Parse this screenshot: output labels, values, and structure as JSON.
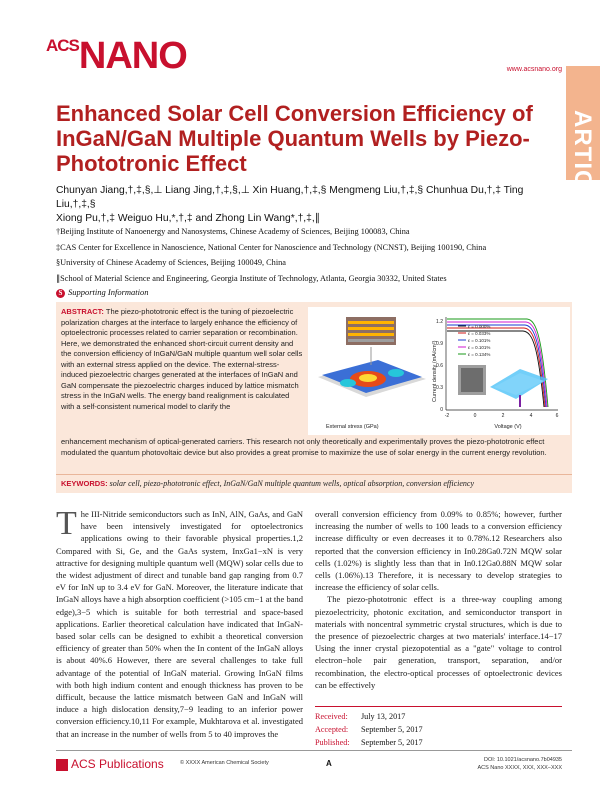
{
  "journal": {
    "logo_small": "ACS",
    "logo_big": "NANO",
    "url": "www.acsnano.org",
    "section": "ARTICLE"
  },
  "title": "Enhanced Solar Cell Conversion Efficiency of InGaN/GaN Multiple Quantum Wells by Piezo-Phototronic Effect",
  "authors": {
    "line1": "Chunyan Jiang,†,‡,§,⊥ Liang Jing,†,‡,§,⊥ Xin Huang,†,‡,§ Mengmeng Liu,†,‡,§ Chunhua Du,†,‡ Ting Liu,†,‡,§",
    "line2": "Xiong Pu,†,‡ Weiguo Hu,*,†,‡ and Zhong Lin Wang*,†,‡,∥"
  },
  "affiliations": [
    "†Beijing Institute of Nanoenergy and Nanosystems, Chinese Academy of Sciences, Beijing 100083, China",
    "‡CAS Center for Excellence in Nanoscience, National Center for Nanoscience and Technology (NCNST), Beijing 100190, China",
    "§University of Chinese Academy of Sciences, Beijing 100049, China",
    "∥School of Material Science and Engineering, Georgia Institute of Technology, Atlanta, Georgia 30332, United States"
  ],
  "supporting": "Supporting Information",
  "abstract": {
    "label": "ABSTRACT:",
    "part1": "The piezo-phototronic effect is the tuning of piezoelectric polarization charges at the interface to largely enhance the efficiency of optoelectronic processes related to carrier separation or recombination. Here, we demonstrated the enhanced short-circuit current density and the conversion efficiency of InGaN/GaN multiple quantum well solar cells with an external stress applied on the device. The external-stress-induced piezoelectric charges generated at the interfaces of InGaN and GaN compensate the piezoelectric charges induced by lattice mismatch stress in the InGaN wells. The energy band realignment is calculated with a self-consistent numerical model to clarify the",
    "part2": "enhancement mechanism of optical-generated carriers. This research not only theoretically and experimentally proves the piezo-phototronic effect modulated the quantum photovoltaic device but also provides a great promise to maximize the use of solar energy in the current energy revolution."
  },
  "keywords": {
    "label": "KEYWORDS:",
    "text": "solar cell, piezo-phototronic effect, InGaN/GaN multiple quantum wells, optical absorption, conversion efficiency"
  },
  "figure": {
    "xlabel_left": "External stress (GPa)",
    "ylabel": "Current density (mA/cm²)",
    "xlabel": "Voltage (V)",
    "legend": [
      "ε = 0.000%",
      "ε = 0.033%",
      "ε = 0.101%",
      "ε = 0.101%",
      "ε = 0.134%"
    ],
    "legend_colors": [
      "#111111",
      "#d11a1a",
      "#1a3ad1",
      "#d11ad1",
      "#1a9a1a"
    ],
    "yticks": [
      "1.2",
      "0.9",
      "0.6",
      "0.3",
      "0"
    ],
    "xticks": [
      "-2",
      "0",
      "2",
      "4",
      "6"
    ]
  },
  "body": {
    "col1_p1": "he III-Nitride semiconductors such as InN, AlN, GaAs, and GaN have been intensively investigated for optoelectronics applications owing to their favorable physical properties.1,2 Compared with Si, Ge, and the GaAs system, InxGa1−xN is very attractive for designing multiple quantum well (MQW) solar cells due to the widest adjustment of direct and tunable band gap ranging from 0.7 eV for InN up to 3.4 eV for GaN. Moreover, the literature indicate that InGaN alloys have a high absorption coefficient (>105 cm−1 at the band edge),3−5 which is suitable for both terrestrial and space-based applications. Earlier theoretical calculation have indicated that InGaN-based solar cells can be designed to exhibit a theoretical conversion efficiency of greater than 50% when the In content of the InGaN alloys is about 40%.6 However, there are several challenges to take full advantage of the potential of InGaN material. Growing InGaN films with both high indium content and enough thickness has proven to be difficult, because the lattice mismatch between GaN and InGaN will induce a high dislocation density,7−9 leading to an inferior power conversion efficiency.10,11 For example, Mukhtarova et al. investigated that an increase in the number of wells from 5 to 40 improves the",
    "dropcap": "T",
    "col2_p1": "overall conversion efficiency from 0.09% to 0.85%; however, further increasing the number of wells to 100 leads to a conversion efficiency increase difficulty or even decreases it to 0.78%.12 Researchers also reported that the conversion efficiency in In0.28Ga0.72N MQW solar cells (1.02%) is slightly less than that in In0.12Ga0.88N MQW solar cells (1.06%).13 Therefore, it is necessary to develop strategies to increase the efficiency of solar cells.",
    "col2_p2": "The piezo-phototronic effect is a three-way coupling among piezoelectricity, photonic excitation, and semiconductor transport in materials with noncentral symmetric crystal structures, which is due to the presence of piezoelectric charges at two materials' interface.14−17 Using the inner crystal piezopotential as a \"gate\" voltage to control electron−hole pair generation, transport, separation, and/or recombination, the electro-optical processes of optoelectronic devices can be effectively"
  },
  "received": [
    {
      "k": "Received:",
      "v": "July 13, 2017"
    },
    {
      "k": "Accepted:",
      "v": "September 5, 2017"
    },
    {
      "k": "Published:",
      "v": "September 5, 2017"
    }
  ],
  "footer": {
    "pubs": "ACS Publications",
    "copyright": "© XXXX American Chemical Society",
    "page": "A",
    "doi": "DOI: 10.1021/acsnano.7b04935",
    "journal_ref": "ACS Nano XXXX, XXX, XXX−XXX"
  }
}
